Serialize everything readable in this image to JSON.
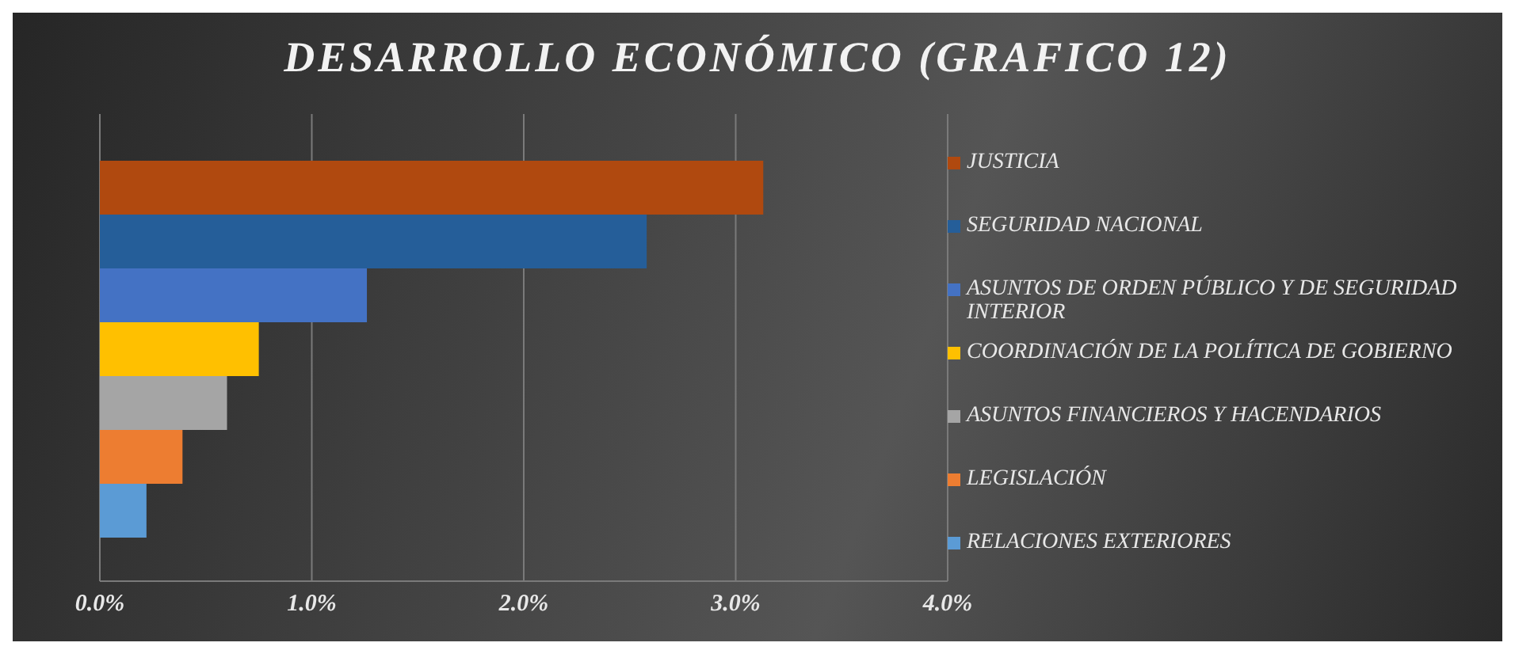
{
  "chart_data": {
    "type": "bar",
    "title": "DESARROLLO ECONÓMICO (GRAFICO 12)",
    "orientation": "horizontal",
    "categories": [
      null
    ],
    "series": [
      {
        "name": "JUSTICIA",
        "color": "#b0490f",
        "values": [
          3.13
        ]
      },
      {
        "name": "SEGURIDAD NACIONAL",
        "color": "#255e99",
        "values": [
          2.58
        ]
      },
      {
        "name": "ASUNTOS DE ORDEN PÚBLICO Y DE SEGURIDAD INTERIOR",
        "color": "#4472c4",
        "values": [
          1.26
        ]
      },
      {
        "name": "COORDINACIÓN DE LA POLÍTICA DE GOBIERNO",
        "color": "#ffc000",
        "values": [
          0.75
        ]
      },
      {
        "name": "ASUNTOS FINANCIEROS Y HACENDARIOS",
        "color": "#a5a5a5",
        "values": [
          0.6
        ]
      },
      {
        "name": "LEGISLACIÓN",
        "color": "#ed7d31",
        "values": [
          0.39
        ]
      },
      {
        "name": "RELACIONES EXTERIORES",
        "color": "#5b9bd5",
        "values": [
          0.22
        ]
      }
    ],
    "xlim": [
      0,
      4
    ],
    "xticks": [
      {
        "value": 0,
        "label": "0.0%"
      },
      {
        "value": 1,
        "label": "1.0%"
      },
      {
        "value": 2,
        "label": "2.0%"
      },
      {
        "value": 3,
        "label": "3.0%"
      },
      {
        "value": 4,
        "label": "4.0%"
      }
    ],
    "grid": "x",
    "legend": "right"
  }
}
